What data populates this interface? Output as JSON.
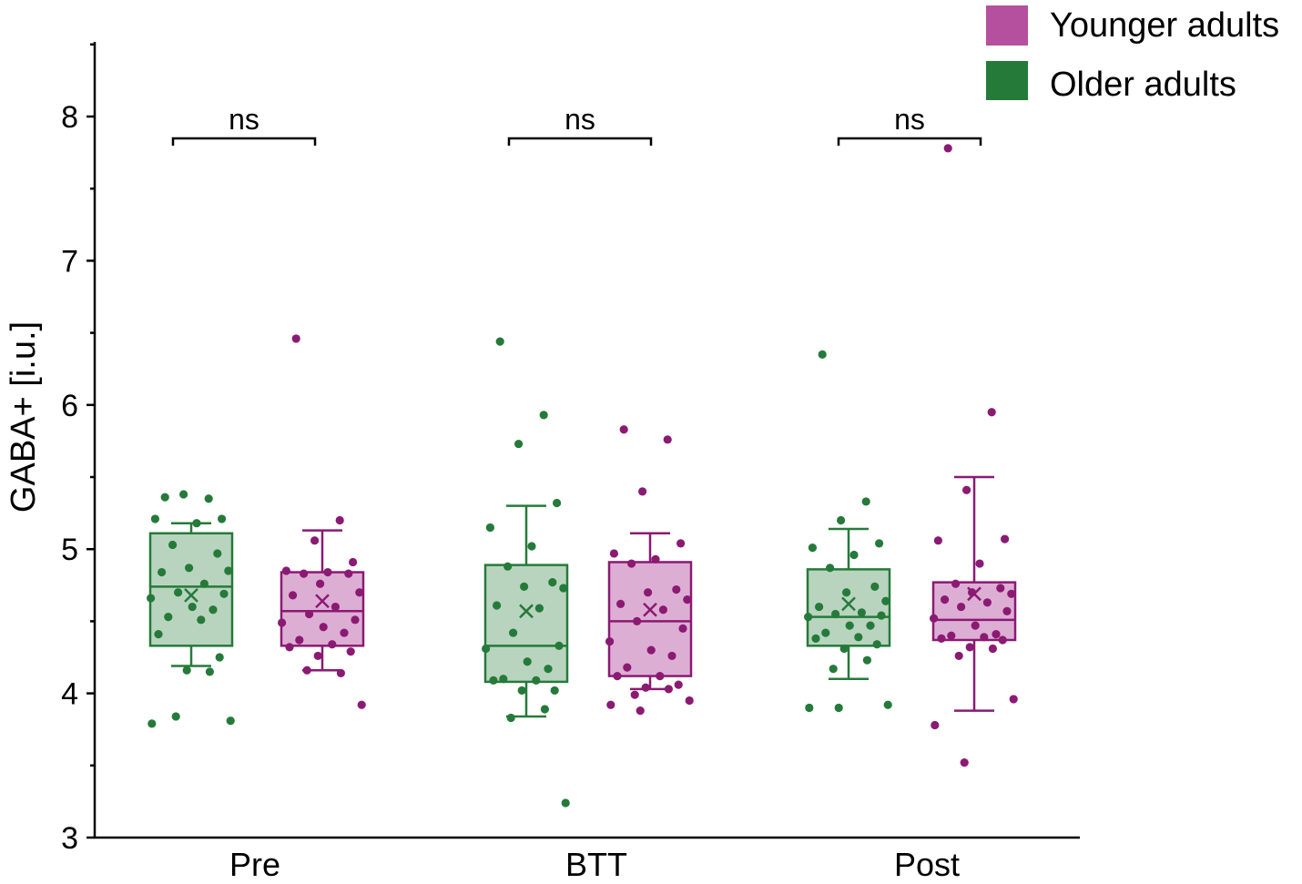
{
  "chart_data": {
    "type": "box",
    "ylabel": "GABA+ [i.u.]",
    "xlabel": "",
    "ylim": [
      3,
      8.5
    ],
    "yticks": [
      3,
      4,
      5,
      6,
      7,
      8
    ],
    "ytick_labels": [
      "3",
      "4",
      "5",
      "6",
      "7",
      "8"
    ],
    "categories": [
      "Pre",
      "BTT",
      "Post"
    ],
    "significance_labels": [
      "ns",
      "ns",
      "ns"
    ],
    "legend": [
      {
        "label": "Younger adults",
        "color": "#b5509f"
      },
      {
        "label": "Older adults",
        "color": "#257a3a"
      }
    ],
    "series": [
      {
        "name": "Older adults",
        "line_color": "#257a3a",
        "fill_color": "#b8d4be",
        "point_color": "#257a3a",
        "boxes": [
          {
            "q1": 4.33,
            "median": 4.74,
            "q3": 5.11,
            "mean": 4.68,
            "whisker_low": 4.19,
            "whisker_high": 5.18,
            "points": [
              5.36,
              5.35,
              5.38,
              5.21,
              5.21,
              5.18,
              5.03,
              4.97,
              4.87,
              4.85,
              4.84,
              4.76,
              4.7,
              4.69,
              4.66,
              4.6,
              4.58,
              4.53,
              4.51,
              4.41,
              4.25,
              4.16,
              4.15,
              3.84,
              3.81,
              3.79
            ]
          },
          {
            "q1": 4.08,
            "median": 4.33,
            "q3": 4.89,
            "mean": 4.57,
            "whisker_low": 3.84,
            "whisker_high": 5.3,
            "points": [
              6.44,
              5.93,
              5.73,
              5.32,
              5.15,
              5.02,
              4.88,
              4.77,
              4.74,
              4.73,
              4.61,
              4.59,
              4.42,
              4.33,
              4.31,
              4.22,
              4.17,
              4.1,
              4.09,
              4.09,
              4.02,
              4.02,
              3.89,
              3.83,
              3.24
            ]
          },
          {
            "q1": 4.33,
            "median": 4.53,
            "q3": 4.86,
            "mean": 4.62,
            "whisker_low": 4.1,
            "whisker_high": 5.14,
            "points": [
              6.35,
              5.33,
              5.2,
              5.04,
              5.01,
              4.96,
              4.87,
              4.74,
              4.7,
              4.64,
              4.6,
              4.56,
              4.55,
              4.54,
              4.53,
              4.47,
              4.47,
              4.42,
              4.39,
              4.38,
              4.34,
              4.31,
              4.23,
              4.17,
              3.92,
              3.9,
              3.9
            ]
          }
        ]
      },
      {
        "name": "Younger adults",
        "line_color": "#8b1a73",
        "fill_color": "#ddaed4",
        "point_color": "#8b1a73",
        "boxes": [
          {
            "q1": 4.33,
            "median": 4.57,
            "q3": 4.84,
            "mean": 4.64,
            "whisker_low": 4.16,
            "whisker_high": 5.13,
            "points": [
              6.46,
              5.2,
              5.06,
              4.91,
              4.85,
              4.84,
              4.83,
              4.83,
              4.76,
              4.7,
              4.68,
              4.6,
              4.55,
              4.51,
              4.49,
              4.46,
              4.42,
              4.37,
              4.34,
              4.32,
              4.29,
              4.26,
              4.14,
              4.16,
              3.92
            ]
          },
          {
            "q1": 4.12,
            "median": 4.5,
            "q3": 4.91,
            "mean": 4.58,
            "whisker_low": 4.03,
            "whisker_high": 5.11,
            "points": [
              5.83,
              5.76,
              5.4,
              5.04,
              4.97,
              4.93,
              4.9,
              4.72,
              4.7,
              4.65,
              4.62,
              4.58,
              4.5,
              4.45,
              4.36,
              4.3,
              4.26,
              4.18,
              4.12,
              4.12,
              4.06,
              4.04,
              4.03,
              3.99,
              3.95,
              3.92,
              3.88
            ]
          },
          {
            "q1": 4.37,
            "median": 4.51,
            "q3": 4.77,
            "mean": 4.69,
            "whisker_low": 3.88,
            "whisker_high": 5.5,
            "points": [
              7.78,
              5.95,
              5.41,
              5.07,
              5.06,
              4.9,
              4.76,
              4.73,
              4.7,
              4.69,
              4.65,
              4.63,
              4.6,
              4.57,
              4.52,
              4.47,
              4.41,
              4.4,
              4.39,
              4.38,
              4.37,
              4.32,
              4.31,
              4.26,
              3.96,
              3.78,
              3.52
            ]
          }
        ]
      }
    ]
  }
}
